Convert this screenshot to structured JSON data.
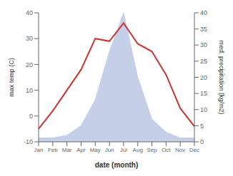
{
  "chart_data": {
    "type": "line",
    "categories": [
      "Jan",
      "Feb",
      "Mar",
      "Apr",
      "May",
      "Jun",
      "Jul",
      "Aug",
      "Sep",
      "Oct",
      "Nov",
      "Dec"
    ],
    "series": [
      {
        "type": "area",
        "axis": "y2",
        "color": "#c5cfe8",
        "values": [
          1.2,
          1.2,
          2,
          5,
          13,
          28,
          40,
          20,
          7,
          3,
          1.2,
          1.2
        ]
      },
      {
        "type": "line",
        "color": "#cc3333",
        "values": [
          -5,
          2,
          10,
          18,
          30,
          29,
          36,
          28,
          25,
          16,
          3,
          -4
        ]
      }
    ],
    "xlabel": "date (month)",
    "ylabel": "max temp (C)",
    "y2label": "med. precipitation (kg/m2)",
    "ylim": [
      -10,
      40
    ],
    "yticks": [
      -10,
      0,
      10,
      20,
      30,
      40
    ],
    "y2lim": [
      0,
      40
    ],
    "y2ticks": [
      0,
      5,
      10,
      15,
      20,
      25,
      30,
      35,
      40
    ]
  }
}
